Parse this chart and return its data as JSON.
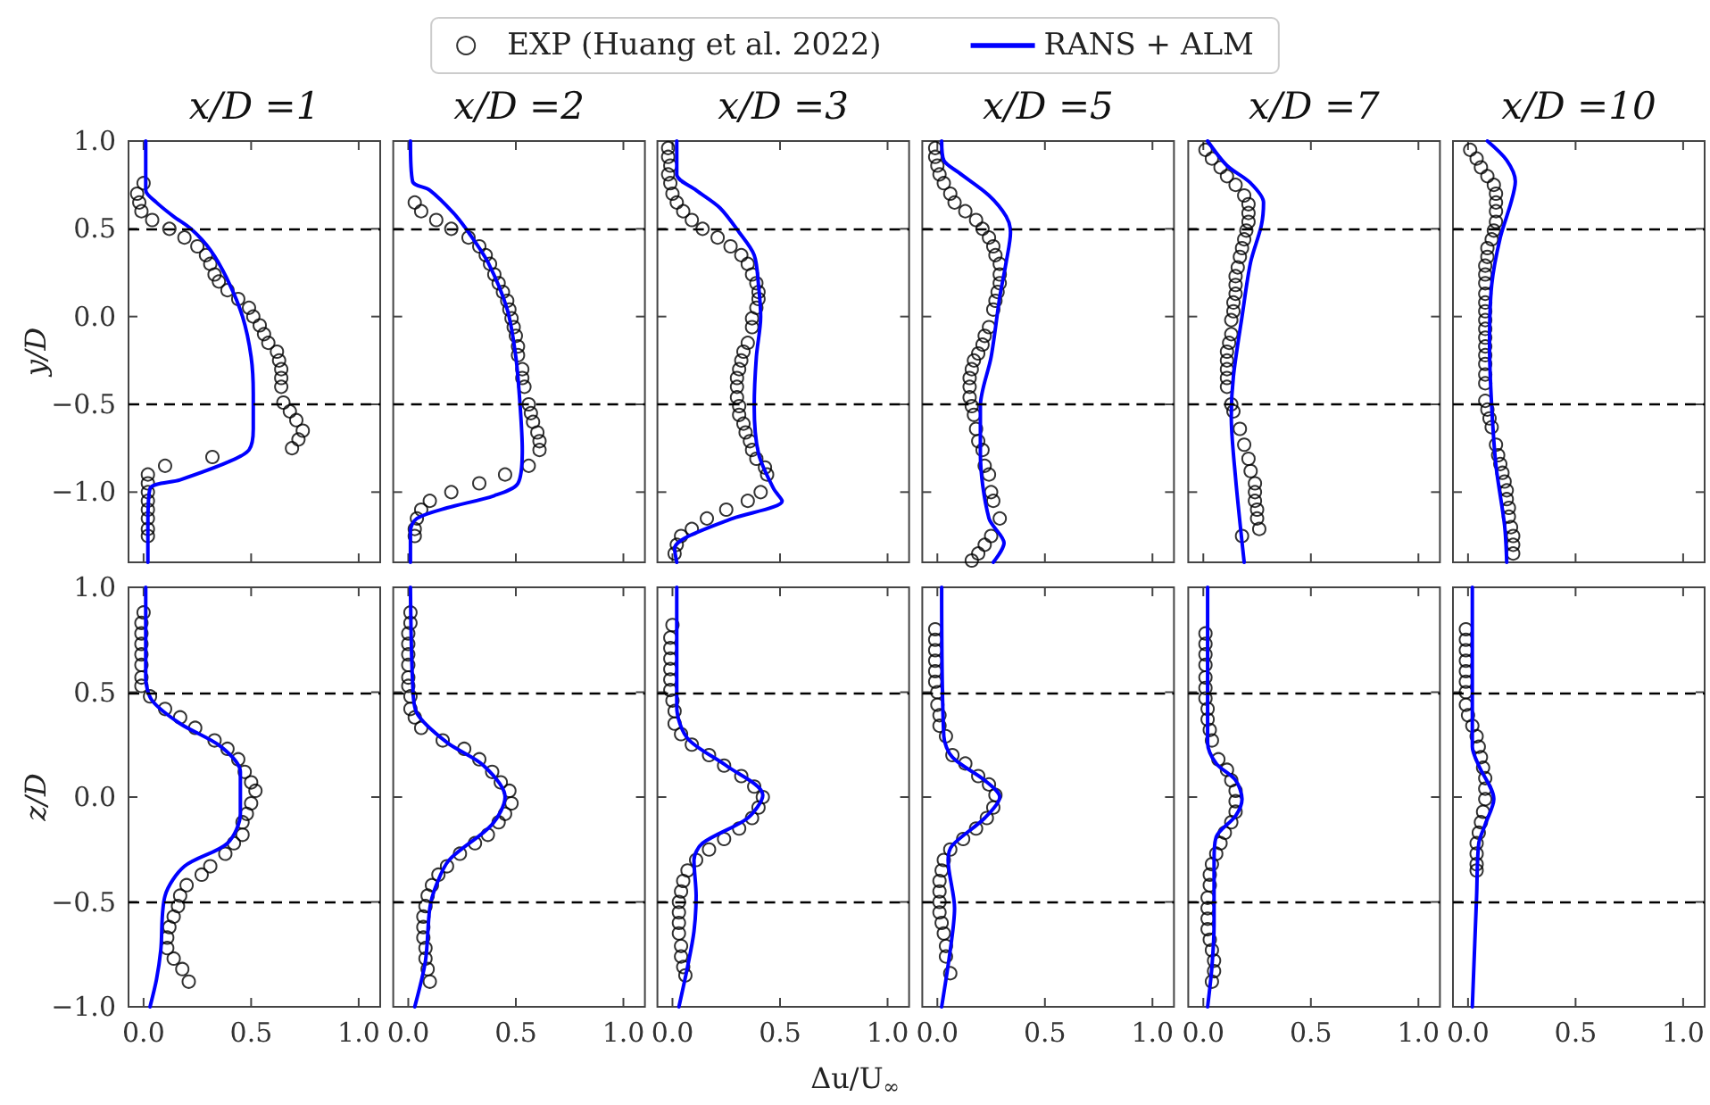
{
  "chart_data": [
    {
      "type": "line",
      "title": "x/D =1",
      "ylabel": "y/D",
      "legend": "top",
      "tick_labels": "y",
      "xlim": [
        -0.07,
        1.1
      ],
      "ylim": [
        -1.4,
        1.0
      ],
      "xticks": [
        {
          "value": 0,
          "label": null
        },
        {
          "value": 0.5,
          "label": null
        },
        {
          "value": 1,
          "label": null
        }
      ],
      "yticks": [
        {
          "value": -1,
          "label": "−1.0"
        },
        {
          "value": -0.5,
          "label": "−0.5"
        },
        {
          "value": 0,
          "label": "0.0"
        },
        0.5,
        {
          "value": 1,
          "label": "1.0"
        }
      ],
      "ref_lines": [
        {
          "axis": "y",
          "value": 0.5,
          "color": "#000000",
          "line_style": "dashed"
        },
        {
          "axis": "y",
          "value": -0.5,
          "color": "#000000",
          "line_style": "dashed"
        }
      ],
      "series": [
        {
          "name": "EXP (Huang et al. 2022)",
          "type": "scatter",
          "marker": "circle",
          "color": "#000000",
          "x": [
            0,
            -0.03,
            -0.02,
            -0.01,
            0.04,
            0.12,
            0.19,
            0.25,
            0.29,
            0.31,
            0.33,
            0.35,
            0.39,
            0.44,
            0.49,
            0.51,
            0.54,
            0.56,
            0.58,
            0.62,
            0.63,
            0.64,
            0.64,
            0.64,
            0.65,
            0.68,
            0.71,
            0.74,
            0.72,
            0.69,
            0.32,
            0.1,
            0.02,
            0.02,
            0.02,
            0.02,
            0.02,
            0.02,
            0.02,
            0.02
          ],
          "values": [
            0.76,
            0.7,
            0.65,
            0.6,
            0.55,
            0.5,
            0.45,
            0.4,
            0.35,
            0.3,
            0.24,
            0.2,
            0.15,
            0.1,
            0.05,
            0.0,
            -0.05,
            -0.1,
            -0.15,
            -0.2,
            -0.25,
            -0.3,
            -0.35,
            -0.4,
            -0.49,
            -0.54,
            -0.59,
            -0.65,
            -0.7,
            -0.75,
            -0.8,
            -0.85,
            -0.9,
            -0.95,
            -1.0,
            -1.05,
            -1.1,
            -1.15,
            -1.21,
            -1.25
          ]
        },
        {
          "name": "RANS + ALM",
          "type": "line",
          "color": "#0000ff",
          "x": [
            0.01,
            0.01,
            0.06,
            0.14,
            0.22,
            0.31,
            0.39,
            0.46,
            0.5,
            0.51,
            0.51,
            0.49,
            0.39,
            0.17,
            0.03,
            0.02,
            0.02
          ],
          "values": [
            1.0,
            0.72,
            0.65,
            0.57,
            0.5,
            0.38,
            0.21,
            0.0,
            -0.23,
            -0.44,
            -0.64,
            -0.76,
            -0.83,
            -0.93,
            -0.98,
            -1.19,
            -1.4
          ]
        }
      ]
    },
    {
      "type": "line",
      "title": "x/D =2",
      "tick_labels": false,
      "xlim": [
        -0.07,
        1.1
      ],
      "ylim": [
        -1.4,
        1.0
      ],
      "xticks": [
        {
          "value": 0,
          "label": null
        },
        {
          "value": 0.5,
          "label": null
        },
        {
          "value": 1,
          "label": null
        }
      ],
      "yticks": [
        {
          "value": -1,
          "label": null
        },
        {
          "value": -0.5,
          "label": null
        },
        {
          "value": 0,
          "label": null
        },
        {
          "value": 0.5,
          "label": null
        },
        {
          "value": 1,
          "label": null
        }
      ],
      "ref_lines": [
        {
          "axis": "y",
          "value": 0.5,
          "color": "#000000",
          "line_style": "dashed"
        },
        {
          "axis": "y",
          "value": -0.5,
          "color": "#000000",
          "line_style": "dashed"
        }
      ],
      "series": [
        {
          "type": "scatter",
          "marker": "circle",
          "color": "#000000",
          "x": [
            0.03,
            0.06,
            0.13,
            0.2,
            0.28,
            0.33,
            0.36,
            0.38,
            0.4,
            0.42,
            0.44,
            0.46,
            0.47,
            0.48,
            0.49,
            0.5,
            0.51,
            0.51,
            0.53,
            0.53,
            0.54,
            0.56,
            0.57,
            0.58,
            0.6,
            0.61,
            0.61,
            0.56,
            0.45,
            0.33,
            0.2,
            0.1,
            0.06,
            0.04,
            0.03,
            0.03
          ],
          "values": [
            0.65,
            0.6,
            0.55,
            0.5,
            0.45,
            0.4,
            0.35,
            0.3,
            0.24,
            0.19,
            0.14,
            0.09,
            0.04,
            -0.01,
            -0.06,
            -0.11,
            -0.17,
            -0.22,
            -0.3,
            -0.35,
            -0.4,
            -0.5,
            -0.55,
            -0.6,
            -0.66,
            -0.71,
            -0.76,
            -0.85,
            -0.9,
            -0.95,
            -1.0,
            -1.05,
            -1.1,
            -1.15,
            -1.21,
            -1.25
          ]
        },
        {
          "type": "line",
          "color": "#0000ff",
          "x": [
            0.01,
            0.02,
            0.1,
            0.21,
            0.28,
            0.37,
            0.46,
            0.5,
            0.52,
            0.53,
            0.51,
            0.4,
            0.18,
            0.04,
            0.01,
            0.01
          ],
          "values": [
            1.0,
            0.77,
            0.72,
            0.59,
            0.48,
            0.31,
            0.04,
            -0.23,
            -0.51,
            -0.76,
            -0.95,
            -1.02,
            -1.09,
            -1.15,
            -1.22,
            -1.4
          ]
        }
      ]
    },
    {
      "type": "line",
      "title": "x/D =3",
      "tick_labels": false,
      "xlim": [
        -0.07,
        1.1
      ],
      "ylim": [
        -1.4,
        1.0
      ],
      "xticks": [
        {
          "value": 0,
          "label": null
        },
        {
          "value": 0.5,
          "label": null
        },
        {
          "value": 1,
          "label": null
        }
      ],
      "yticks": [
        {
          "value": -1,
          "label": null
        },
        {
          "value": -0.5,
          "label": null
        },
        {
          "value": 0,
          "label": null
        },
        {
          "value": 0.5,
          "label": null
        },
        {
          "value": 1,
          "label": null
        }
      ],
      "ref_lines": [
        {
          "axis": "y",
          "value": 0.5,
          "color": "#000000",
          "line_style": "dashed"
        },
        {
          "axis": "y",
          "value": -0.5,
          "color": "#000000",
          "line_style": "dashed"
        }
      ],
      "series": [
        {
          "type": "scatter",
          "marker": "circle",
          "color": "#000000",
          "x": [
            -0.02,
            -0.02,
            -0.01,
            -0.02,
            -0.01,
            0.0,
            0.02,
            0.05,
            0.09,
            0.14,
            0.21,
            0.27,
            0.32,
            0.35,
            0.37,
            0.39,
            0.4,
            0.4,
            0.39,
            0.37,
            0.37,
            0.35,
            0.33,
            0.32,
            0.31,
            0.3,
            0.3,
            0.3,
            0.31,
            0.31,
            0.33,
            0.34,
            0.36,
            0.37,
            0.39,
            0.43,
            0.44,
            0.41,
            0.35,
            0.25,
            0.16,
            0.09,
            0.04,
            0.02,
            0.01
          ],
          "values": [
            0.96,
            0.91,
            0.86,
            0.81,
            0.76,
            0.7,
            0.65,
            0.6,
            0.55,
            0.5,
            0.45,
            0.4,
            0.35,
            0.3,
            0.24,
            0.19,
            0.14,
            0.1,
            0.05,
            -0.01,
            -0.06,
            -0.15,
            -0.2,
            -0.25,
            -0.3,
            -0.35,
            -0.4,
            -0.46,
            -0.51,
            -0.56,
            -0.61,
            -0.66,
            -0.71,
            -0.76,
            -0.81,
            -0.86,
            -0.9,
            -1.0,
            -1.05,
            -1.1,
            -1.15,
            -1.21,
            -1.25,
            -1.3,
            -1.35
          ]
        },
        {
          "type": "line",
          "color": "#0000ff",
          "x": [
            0.02,
            0.02,
            0.11,
            0.22,
            0.31,
            0.38,
            0.4,
            0.41,
            0.39,
            0.38,
            0.4,
            0.47,
            0.51,
            0.28,
            0.06,
            0.01,
            0.02
          ],
          "values": [
            1.0,
            0.81,
            0.72,
            0.62,
            0.48,
            0.35,
            0.18,
            0.0,
            -0.23,
            -0.51,
            -0.78,
            -0.98,
            -1.05,
            -1.15,
            -1.26,
            -1.32,
            -1.4
          ]
        }
      ]
    },
    {
      "type": "line",
      "title": "x/D =5",
      "tick_labels": false,
      "xlim": [
        -0.07,
        1.1
      ],
      "ylim": [
        -1.4,
        1.0
      ],
      "xticks": [
        {
          "value": 0,
          "label": null
        },
        {
          "value": 0.5,
          "label": null
        },
        {
          "value": 1,
          "label": null
        }
      ],
      "yticks": [
        {
          "value": -1,
          "label": null
        },
        {
          "value": -0.5,
          "label": null
        },
        {
          "value": 0,
          "label": null
        },
        {
          "value": 0.5,
          "label": null
        },
        {
          "value": 1,
          "label": null
        }
      ],
      "ref_lines": [
        {
          "axis": "y",
          "value": 0.5,
          "color": "#000000",
          "line_style": "dashed"
        },
        {
          "axis": "y",
          "value": -0.5,
          "color": "#000000",
          "line_style": "dashed"
        }
      ],
      "series": [
        {
          "type": "scatter",
          "marker": "circle",
          "color": "#000000",
          "x": [
            -0.01,
            -0.01,
            0.0,
            0.01,
            0.03,
            0.06,
            0.08,
            0.13,
            0.18,
            0.21,
            0.24,
            0.26,
            0.27,
            0.29,
            0.29,
            0.29,
            0.28,
            0.27,
            0.26,
            0.24,
            0.22,
            0.21,
            0.19,
            0.17,
            0.16,
            0.15,
            0.15,
            0.15,
            0.16,
            0.17,
            0.18,
            0.19,
            0.21,
            0.22,
            0.24,
            0.25,
            0.26,
            0.29,
            0.25,
            0.22,
            0.19,
            0.16
          ],
          "values": [
            0.96,
            0.91,
            0.86,
            0.81,
            0.76,
            0.7,
            0.65,
            0.6,
            0.55,
            0.5,
            0.45,
            0.4,
            0.35,
            0.3,
            0.24,
            0.19,
            0.14,
            0.09,
            0.04,
            -0.06,
            -0.11,
            -0.16,
            -0.21,
            -0.25,
            -0.3,
            -0.35,
            -0.4,
            -0.46,
            -0.51,
            -0.56,
            -0.64,
            -0.71,
            -0.76,
            -0.85,
            -0.9,
            -1.0,
            -1.05,
            -1.15,
            -1.25,
            -1.3,
            -1.35,
            -1.39
          ]
        },
        {
          "type": "line",
          "color": "#0000ff",
          "x": [
            0.02,
            0.03,
            0.1,
            0.24,
            0.32,
            0.34,
            0.32,
            0.29,
            0.25,
            0.2,
            0.2,
            0.24,
            0.31,
            0.26
          ],
          "values": [
            1.0,
            0.89,
            0.82,
            0.69,
            0.57,
            0.48,
            0.31,
            0.11,
            -0.23,
            -0.51,
            -0.78,
            -1.15,
            -1.29,
            -1.4
          ]
        }
      ]
    },
    {
      "type": "line",
      "title": "x/D =7",
      "tick_labels": false,
      "xlim": [
        -0.07,
        1.1
      ],
      "ylim": [
        -1.4,
        1.0
      ],
      "xticks": [
        {
          "value": 0,
          "label": null
        },
        {
          "value": 0.5,
          "label": null
        },
        {
          "value": 1,
          "label": null
        }
      ],
      "yticks": [
        {
          "value": -1,
          "label": null
        },
        {
          "value": -0.5,
          "label": null
        },
        {
          "value": 0,
          "label": null
        },
        {
          "value": 0.5,
          "label": null
        },
        {
          "value": 1,
          "label": null
        }
      ],
      "ref_lines": [
        {
          "axis": "y",
          "value": 0.5,
          "color": "#000000",
          "line_style": "dashed"
        },
        {
          "axis": "y",
          "value": -0.5,
          "color": "#000000",
          "line_style": "dashed"
        }
      ],
      "series": [
        {
          "type": "scatter",
          "marker": "circle",
          "color": "#000000",
          "x": [
            0.01,
            0.04,
            0.08,
            0.11,
            0.15,
            0.19,
            0.21,
            0.21,
            0.21,
            0.2,
            0.19,
            0.18,
            0.17,
            0.16,
            0.15,
            0.15,
            0.15,
            0.14,
            0.14,
            0.13,
            0.13,
            0.12,
            0.11,
            0.11,
            0.11,
            0.11,
            0.11,
            0.13,
            0.14,
            0.17,
            0.19,
            0.21,
            0.22,
            0.24,
            0.24,
            0.24,
            0.25,
            0.25,
            0.26,
            0.18
          ],
          "values": [
            0.95,
            0.9,
            0.85,
            0.8,
            0.75,
            0.69,
            0.64,
            0.59,
            0.54,
            0.49,
            0.44,
            0.39,
            0.34,
            0.28,
            0.23,
            0.18,
            0.13,
            0.08,
            0.03,
            -0.02,
            -0.1,
            -0.15,
            -0.2,
            -0.25,
            -0.3,
            -0.35,
            -0.4,
            -0.5,
            -0.54,
            -0.64,
            -0.73,
            -0.81,
            -0.88,
            -0.95,
            -1.0,
            -1.05,
            -1.1,
            -1.15,
            -1.21,
            -1.25
          ]
        },
        {
          "type": "line",
          "color": "#0000ff",
          "x": [
            0.02,
            0.11,
            0.22,
            0.28,
            0.27,
            0.22,
            0.18,
            0.14,
            0.13,
            0.15,
            0.19
          ],
          "values": [
            1.0,
            0.86,
            0.76,
            0.65,
            0.52,
            0.31,
            0.0,
            -0.34,
            -0.57,
            -0.92,
            -1.4
          ]
        }
      ]
    },
    {
      "type": "line",
      "title": "x/D =10",
      "tick_labels": false,
      "xlim": [
        -0.07,
        1.1
      ],
      "ylim": [
        -1.4,
        1.0
      ],
      "xticks": [
        {
          "value": 0,
          "label": null
        },
        {
          "value": 0.5,
          "label": null
        },
        {
          "value": 1,
          "label": null
        }
      ],
      "yticks": [
        {
          "value": -1,
          "label": null
        },
        {
          "value": -0.5,
          "label": null
        },
        {
          "value": 0,
          "label": null
        },
        {
          "value": 0.5,
          "label": null
        },
        {
          "value": 1,
          "label": null
        }
      ],
      "ref_lines": [
        {
          "axis": "y",
          "value": 0.5,
          "color": "#000000",
          "line_style": "dashed"
        },
        {
          "axis": "y",
          "value": -0.5,
          "color": "#000000",
          "line_style": "dashed"
        }
      ],
      "series": [
        {
          "type": "scatter",
          "marker": "circle",
          "color": "#000000",
          "x": [
            0.01,
            0.04,
            0.06,
            0.09,
            0.12,
            0.13,
            0.13,
            0.13,
            0.13,
            0.12,
            0.11,
            0.09,
            0.09,
            0.08,
            0.08,
            0.08,
            0.08,
            0.08,
            0.08,
            0.08,
            0.08,
            0.08,
            0.08,
            0.08,
            0.08,
            0.08,
            0.08,
            0.08,
            0.09,
            0.1,
            0.11,
            0.13,
            0.14,
            0.15,
            0.16,
            0.17,
            0.18,
            0.18,
            0.19,
            0.19,
            0.2,
            0.21,
            0.21,
            0.21
          ],
          "values": [
            0.95,
            0.9,
            0.85,
            0.8,
            0.75,
            0.7,
            0.65,
            0.6,
            0.54,
            0.49,
            0.44,
            0.39,
            0.34,
            0.29,
            0.24,
            0.19,
            0.13,
            0.08,
            0.03,
            -0.02,
            -0.07,
            -0.12,
            -0.17,
            -0.22,
            -0.27,
            -0.33,
            -0.38,
            -0.48,
            -0.53,
            -0.58,
            -0.63,
            -0.73,
            -0.79,
            -0.84,
            -0.89,
            -0.94,
            -0.99,
            -1.04,
            -1.09,
            -1.14,
            -1.2,
            -1.25,
            -1.3,
            -1.35
          ]
        },
        {
          "type": "line",
          "color": "#0000ff",
          "x": [
            0.09,
            0.18,
            0.22,
            0.2,
            0.15,
            0.11,
            0.1,
            0.11,
            0.13,
            0.17,
            0.18
          ],
          "values": [
            1.0,
            0.89,
            0.77,
            0.65,
            0.45,
            0.18,
            -0.16,
            -0.51,
            -0.85,
            -1.19,
            -1.4
          ]
        }
      ]
    },
    {
      "type": "line",
      "ylabel": "z/D",
      "xlim": [
        -0.07,
        1.1
      ],
      "ylim": [
        -1.0,
        1.0
      ],
      "xticks": [
        {
          "value": 0,
          "label": "0.0"
        },
        {
          "value": 0.5,
          "label": "0.5"
        },
        {
          "value": 1,
          "label": "1.0"
        }
      ],
      "yticks": [
        {
          "value": -1,
          "label": "−1.0"
        },
        {
          "value": -0.5,
          "label": "−0.5"
        },
        {
          "value": 0,
          "label": "0.0"
        },
        0.5,
        {
          "value": 1,
          "label": "1.0"
        }
      ],
      "ref_lines": [
        {
          "axis": "y",
          "value": 0.5,
          "color": "#000000",
          "line_style": "dashed"
        },
        {
          "axis": "y",
          "value": -0.5,
          "color": "#000000",
          "line_style": "dashed"
        }
      ],
      "series": [
        {
          "type": "scatter",
          "marker": "circle",
          "color": "#000000",
          "x": [
            0.0,
            -0.01,
            -0.01,
            -0.01,
            -0.01,
            -0.01,
            -0.01,
            -0.01,
            0.03,
            0.1,
            0.17,
            0.24,
            0.33,
            0.39,
            0.44,
            0.47,
            0.5,
            0.52,
            0.5,
            0.48,
            0.46,
            0.46,
            0.42,
            0.38,
            0.31,
            0.27,
            0.2,
            0.17,
            0.16,
            0.14,
            0.12,
            0.11,
            0.11,
            0.14,
            0.18,
            0.21
          ],
          "values": [
            0.88,
            0.83,
            0.78,
            0.73,
            0.68,
            0.63,
            0.57,
            0.53,
            0.48,
            0.42,
            0.38,
            0.33,
            0.27,
            0.23,
            0.18,
            0.12,
            0.07,
            0.03,
            -0.03,
            -0.08,
            -0.12,
            -0.18,
            -0.22,
            -0.27,
            -0.33,
            -0.37,
            -0.42,
            -0.47,
            -0.52,
            -0.57,
            -0.62,
            -0.67,
            -0.72,
            -0.77,
            -0.82,
            -0.88
          ]
        },
        {
          "type": "line",
          "color": "#0000ff",
          "x": [
            0.01,
            0.01,
            0.04,
            0.17,
            0.36,
            0.45,
            0.45,
            0.39,
            0.19,
            0.1,
            0.08,
            0.06,
            0.03
          ],
          "values": [
            1.0,
            0.57,
            0.46,
            0.35,
            0.24,
            0.12,
            -0.08,
            -0.22,
            -0.33,
            -0.47,
            -0.73,
            -0.87,
            -1.0
          ]
        }
      ]
    },
    {
      "type": "line",
      "tick_labels": "x",
      "xlim": [
        -0.07,
        1.1
      ],
      "ylim": [
        -1.0,
        1.0
      ],
      "xticks": [
        {
          "value": 0,
          "label": "0.0"
        },
        {
          "value": 0.5,
          "label": "0.5"
        },
        {
          "value": 1,
          "label": "1.0"
        }
      ],
      "yticks": [
        {
          "value": -1,
          "label": null
        },
        {
          "value": -0.5,
          "label": null
        },
        {
          "value": 0,
          "label": null
        },
        {
          "value": 0.5,
          "label": null
        },
        {
          "value": 1,
          "label": null
        }
      ],
      "ref_lines": [
        {
          "axis": "y",
          "value": 0.5,
          "color": "#000000",
          "line_style": "dashed"
        },
        {
          "axis": "y",
          "value": -0.5,
          "color": "#000000",
          "line_style": "dashed"
        }
      ],
      "series": [
        {
          "type": "scatter",
          "marker": "circle",
          "color": "#000000",
          "x": [
            0.01,
            0.01,
            0.0,
            0.0,
            0.0,
            0.0,
            0.0,
            0.0,
            0.01,
            0.01,
            0.03,
            0.06,
            0.16,
            0.26,
            0.33,
            0.39,
            0.43,
            0.47,
            0.48,
            0.45,
            0.42,
            0.37,
            0.31,
            0.24,
            0.18,
            0.14,
            0.11,
            0.09,
            0.08,
            0.07,
            0.07,
            0.07,
            0.08,
            0.08,
            0.09,
            0.1
          ],
          "values": [
            0.88,
            0.83,
            0.78,
            0.73,
            0.68,
            0.63,
            0.57,
            0.53,
            0.48,
            0.42,
            0.38,
            0.33,
            0.27,
            0.23,
            0.18,
            0.12,
            0.07,
            0.03,
            -0.03,
            -0.08,
            -0.12,
            -0.18,
            -0.22,
            -0.27,
            -0.33,
            -0.37,
            -0.42,
            -0.47,
            -0.52,
            -0.57,
            -0.62,
            -0.67,
            -0.72,
            -0.77,
            -0.82,
            -0.88
          ]
        },
        {
          "type": "line",
          "color": "#0000ff",
          "x": [
            0.01,
            0.02,
            0.04,
            0.18,
            0.35,
            0.45,
            0.39,
            0.19,
            0.13,
            0.1,
            0.08,
            0.03
          ],
          "values": [
            1.0,
            0.55,
            0.4,
            0.26,
            0.15,
            0.0,
            -0.13,
            -0.3,
            -0.42,
            -0.53,
            -0.78,
            -1.0
          ]
        }
      ]
    },
    {
      "type": "line",
      "xlabel": "Δu/U$_{∞}$",
      "tick_labels": "x",
      "xlim": [
        -0.07,
        1.1
      ],
      "ylim": [
        -1.0,
        1.0
      ],
      "xticks": [
        {
          "value": 0,
          "label": "0.0"
        },
        {
          "value": 0.5,
          "label": "0.5"
        },
        {
          "value": 1,
          "label": "1.0"
        }
      ],
      "yticks": [
        {
          "value": -1,
          "label": null
        },
        {
          "value": -0.5,
          "label": null
        },
        {
          "value": 0,
          "label": null
        },
        {
          "value": 0.5,
          "label": null
        },
        {
          "value": 1,
          "label": null
        }
      ],
      "ref_lines": [
        {
          "axis": "y",
          "value": 0.5,
          "color": "#000000",
          "line_style": "dashed"
        },
        {
          "axis": "y",
          "value": -0.5,
          "color": "#000000",
          "line_style": "dashed"
        }
      ],
      "series": [
        {
          "type": "scatter",
          "marker": "circle",
          "color": "#000000",
          "x": [
            0.0,
            -0.01,
            -0.01,
            -0.01,
            -0.01,
            -0.01,
            -0.01,
            0.0,
            0.01,
            0.01,
            0.04,
            0.09,
            0.17,
            0.24,
            0.32,
            0.38,
            0.42,
            0.4,
            0.37,
            0.31,
            0.24,
            0.17,
            0.11,
            0.07,
            0.05,
            0.04,
            0.03,
            0.03,
            0.03,
            0.03,
            0.04,
            0.04,
            0.05,
            0.06
          ],
          "values": [
            0.82,
            0.76,
            0.71,
            0.66,
            0.61,
            0.56,
            0.51,
            0.46,
            0.41,
            0.35,
            0.3,
            0.25,
            0.2,
            0.15,
            0.1,
            0.05,
            0.0,
            -0.05,
            -0.1,
            -0.15,
            -0.2,
            -0.25,
            -0.3,
            -0.35,
            -0.4,
            -0.45,
            -0.5,
            -0.55,
            -0.6,
            -0.65,
            -0.71,
            -0.76,
            -0.81,
            -0.85
          ]
        },
        {
          "type": "line",
          "color": "#0000ff",
          "x": [
            0.02,
            0.02,
            0.07,
            0.25,
            0.42,
            0.35,
            0.14,
            0.1,
            0.11,
            0.1,
            0.07,
            0.03
          ],
          "values": [
            1.0,
            0.43,
            0.28,
            0.15,
            0.01,
            -0.1,
            -0.22,
            -0.3,
            -0.47,
            -0.64,
            -0.81,
            -1.0
          ]
        }
      ]
    },
    {
      "type": "line",
      "tick_labels": "x",
      "xlim": [
        -0.07,
        1.1
      ],
      "ylim": [
        -1.0,
        1.0
      ],
      "xticks": [
        {
          "value": 0,
          "label": "0.0"
        },
        {
          "value": 0.5,
          "label": "0.5"
        },
        {
          "value": 1,
          "label": "1.0"
        }
      ],
      "yticks": [
        {
          "value": -1,
          "label": null
        },
        {
          "value": -0.5,
          "label": null
        },
        {
          "value": 0,
          "label": null
        },
        {
          "value": 0.5,
          "label": null
        },
        {
          "value": 1,
          "label": null
        }
      ],
      "ref_lines": [
        {
          "axis": "y",
          "value": 0.5,
          "color": "#000000",
          "line_style": "dashed"
        },
        {
          "axis": "y",
          "value": -0.5,
          "color": "#000000",
          "line_style": "dashed"
        }
      ],
      "series": [
        {
          "type": "scatter",
          "marker": "circle",
          "color": "#000000",
          "x": [
            -0.01,
            -0.01,
            -0.01,
            -0.01,
            -0.01,
            -0.01,
            0.0,
            0.0,
            0.01,
            0.01,
            0.04,
            0.07,
            0.13,
            0.19,
            0.24,
            0.27,
            0.26,
            0.23,
            0.18,
            0.12,
            0.06,
            0.03,
            0.02,
            0.01,
            0.01,
            0.01,
            0.01,
            0.02,
            0.03,
            0.04,
            0.04,
            0.06
          ],
          "values": [
            0.8,
            0.75,
            0.7,
            0.65,
            0.6,
            0.55,
            0.5,
            0.44,
            0.39,
            0.34,
            0.29,
            0.2,
            0.16,
            0.1,
            0.06,
            0.01,
            -0.05,
            -0.1,
            -0.15,
            -0.2,
            -0.25,
            -0.3,
            -0.35,
            -0.4,
            -0.45,
            -0.5,
            -0.55,
            -0.6,
            -0.65,
            -0.71,
            -0.76,
            -0.84
          ]
        },
        {
          "type": "line",
          "color": "#0000ff",
          "x": [
            0.02,
            0.03,
            0.07,
            0.22,
            0.29,
            0.22,
            0.07,
            0.05,
            0.08,
            0.06,
            0.02
          ],
          "values": [
            1.0,
            0.29,
            0.19,
            0.08,
            0.0,
            -0.1,
            -0.23,
            -0.3,
            -0.53,
            -0.73,
            -1.0
          ]
        }
      ]
    },
    {
      "type": "line",
      "tick_labels": "x",
      "xlim": [
        -0.07,
        1.1
      ],
      "ylim": [
        -1.0,
        1.0
      ],
      "xticks": [
        {
          "value": 0,
          "label": "0.0"
        },
        {
          "value": 0.5,
          "label": "0.5"
        },
        {
          "value": 1,
          "label": "1.0"
        }
      ],
      "yticks": [
        {
          "value": -1,
          "label": null
        },
        {
          "value": -0.5,
          "label": null
        },
        {
          "value": 0,
          "label": null
        },
        {
          "value": 0.5,
          "label": null
        },
        {
          "value": 1,
          "label": null
        }
      ],
      "ref_lines": [
        {
          "axis": "y",
          "value": 0.5,
          "color": "#000000",
          "line_style": "dashed"
        },
        {
          "axis": "y",
          "value": -0.5,
          "color": "#000000",
          "line_style": "dashed"
        }
      ],
      "series": [
        {
          "type": "scatter",
          "marker": "circle",
          "color": "#000000",
          "x": [
            0.01,
            0.01,
            0.01,
            0.01,
            0.01,
            0.01,
            0.01,
            0.02,
            0.02,
            0.03,
            0.04,
            0.07,
            0.11,
            0.13,
            0.15,
            0.15,
            0.15,
            0.13,
            0.1,
            0.08,
            0.06,
            0.04,
            0.03,
            0.03,
            0.02,
            0.02,
            0.02,
            0.02,
            0.03,
            0.04,
            0.05,
            0.05,
            0.04
          ],
          "values": [
            0.78,
            0.73,
            0.68,
            0.63,
            0.57,
            0.52,
            0.47,
            0.42,
            0.37,
            0.32,
            0.27,
            0.18,
            0.13,
            0.08,
            0.03,
            -0.02,
            -0.07,
            -0.12,
            -0.17,
            -0.22,
            -0.27,
            -0.32,
            -0.37,
            -0.42,
            -0.48,
            -0.53,
            -0.58,
            -0.63,
            -0.68,
            -0.73,
            -0.78,
            -0.83,
            -0.88
          ]
        },
        {
          "type": "line",
          "color": "#0000ff",
          "x": [
            0.02,
            0.02,
            0.06,
            0.15,
            0.18,
            0.15,
            0.06,
            0.05,
            0.05,
            0.04,
            0.02
          ],
          "values": [
            1.0,
            0.26,
            0.16,
            0.08,
            -0.01,
            -0.09,
            -0.19,
            -0.3,
            -0.61,
            -0.81,
            -1.0
          ]
        }
      ]
    },
    {
      "type": "line",
      "tick_labels": "x",
      "xlim": [
        -0.07,
        1.1
      ],
      "ylim": [
        -1.0,
        1.0
      ],
      "xticks": [
        {
          "value": 0,
          "label": "0.0"
        },
        {
          "value": 0.5,
          "label": "0.5"
        },
        {
          "value": 1,
          "label": "1.0"
        }
      ],
      "yticks": [
        {
          "value": -1,
          "label": null
        },
        {
          "value": -0.5,
          "label": null
        },
        {
          "value": 0,
          "label": null
        },
        {
          "value": 0.5,
          "label": null
        },
        {
          "value": 1,
          "label": null
        }
      ],
      "ref_lines": [
        {
          "axis": "y",
          "value": 0.5,
          "color": "#000000",
          "line_style": "dashed"
        },
        {
          "axis": "y",
          "value": -0.5,
          "color": "#000000",
          "line_style": "dashed"
        }
      ],
      "series": [
        {
          "type": "scatter",
          "marker": "circle",
          "color": "#000000",
          "x": [
            -0.01,
            -0.01,
            -0.01,
            -0.01,
            -0.01,
            -0.01,
            -0.01,
            -0.01,
            0.0,
            0.02,
            0.04,
            0.05,
            0.06,
            0.07,
            0.08,
            0.08,
            0.08,
            0.07,
            0.06,
            0.05,
            0.04,
            0.04,
            0.04,
            0.04
          ],
          "values": [
            0.8,
            0.75,
            0.7,
            0.65,
            0.6,
            0.55,
            0.5,
            0.44,
            0.39,
            0.34,
            0.29,
            0.24,
            0.19,
            0.14,
            0.09,
            0.04,
            -0.01,
            -0.07,
            -0.12,
            -0.17,
            -0.22,
            -0.27,
            -0.32,
            -0.35
          ]
        },
        {
          "type": "line",
          "color": "#0000ff",
          "x": [
            0.02,
            0.02,
            0.05,
            0.12,
            0.08,
            0.05,
            0.04,
            0.02
          ],
          "values": [
            1.0,
            0.24,
            0.15,
            -0.01,
            -0.13,
            -0.22,
            -0.47,
            -1.0
          ]
        }
      ]
    }
  ]
}
